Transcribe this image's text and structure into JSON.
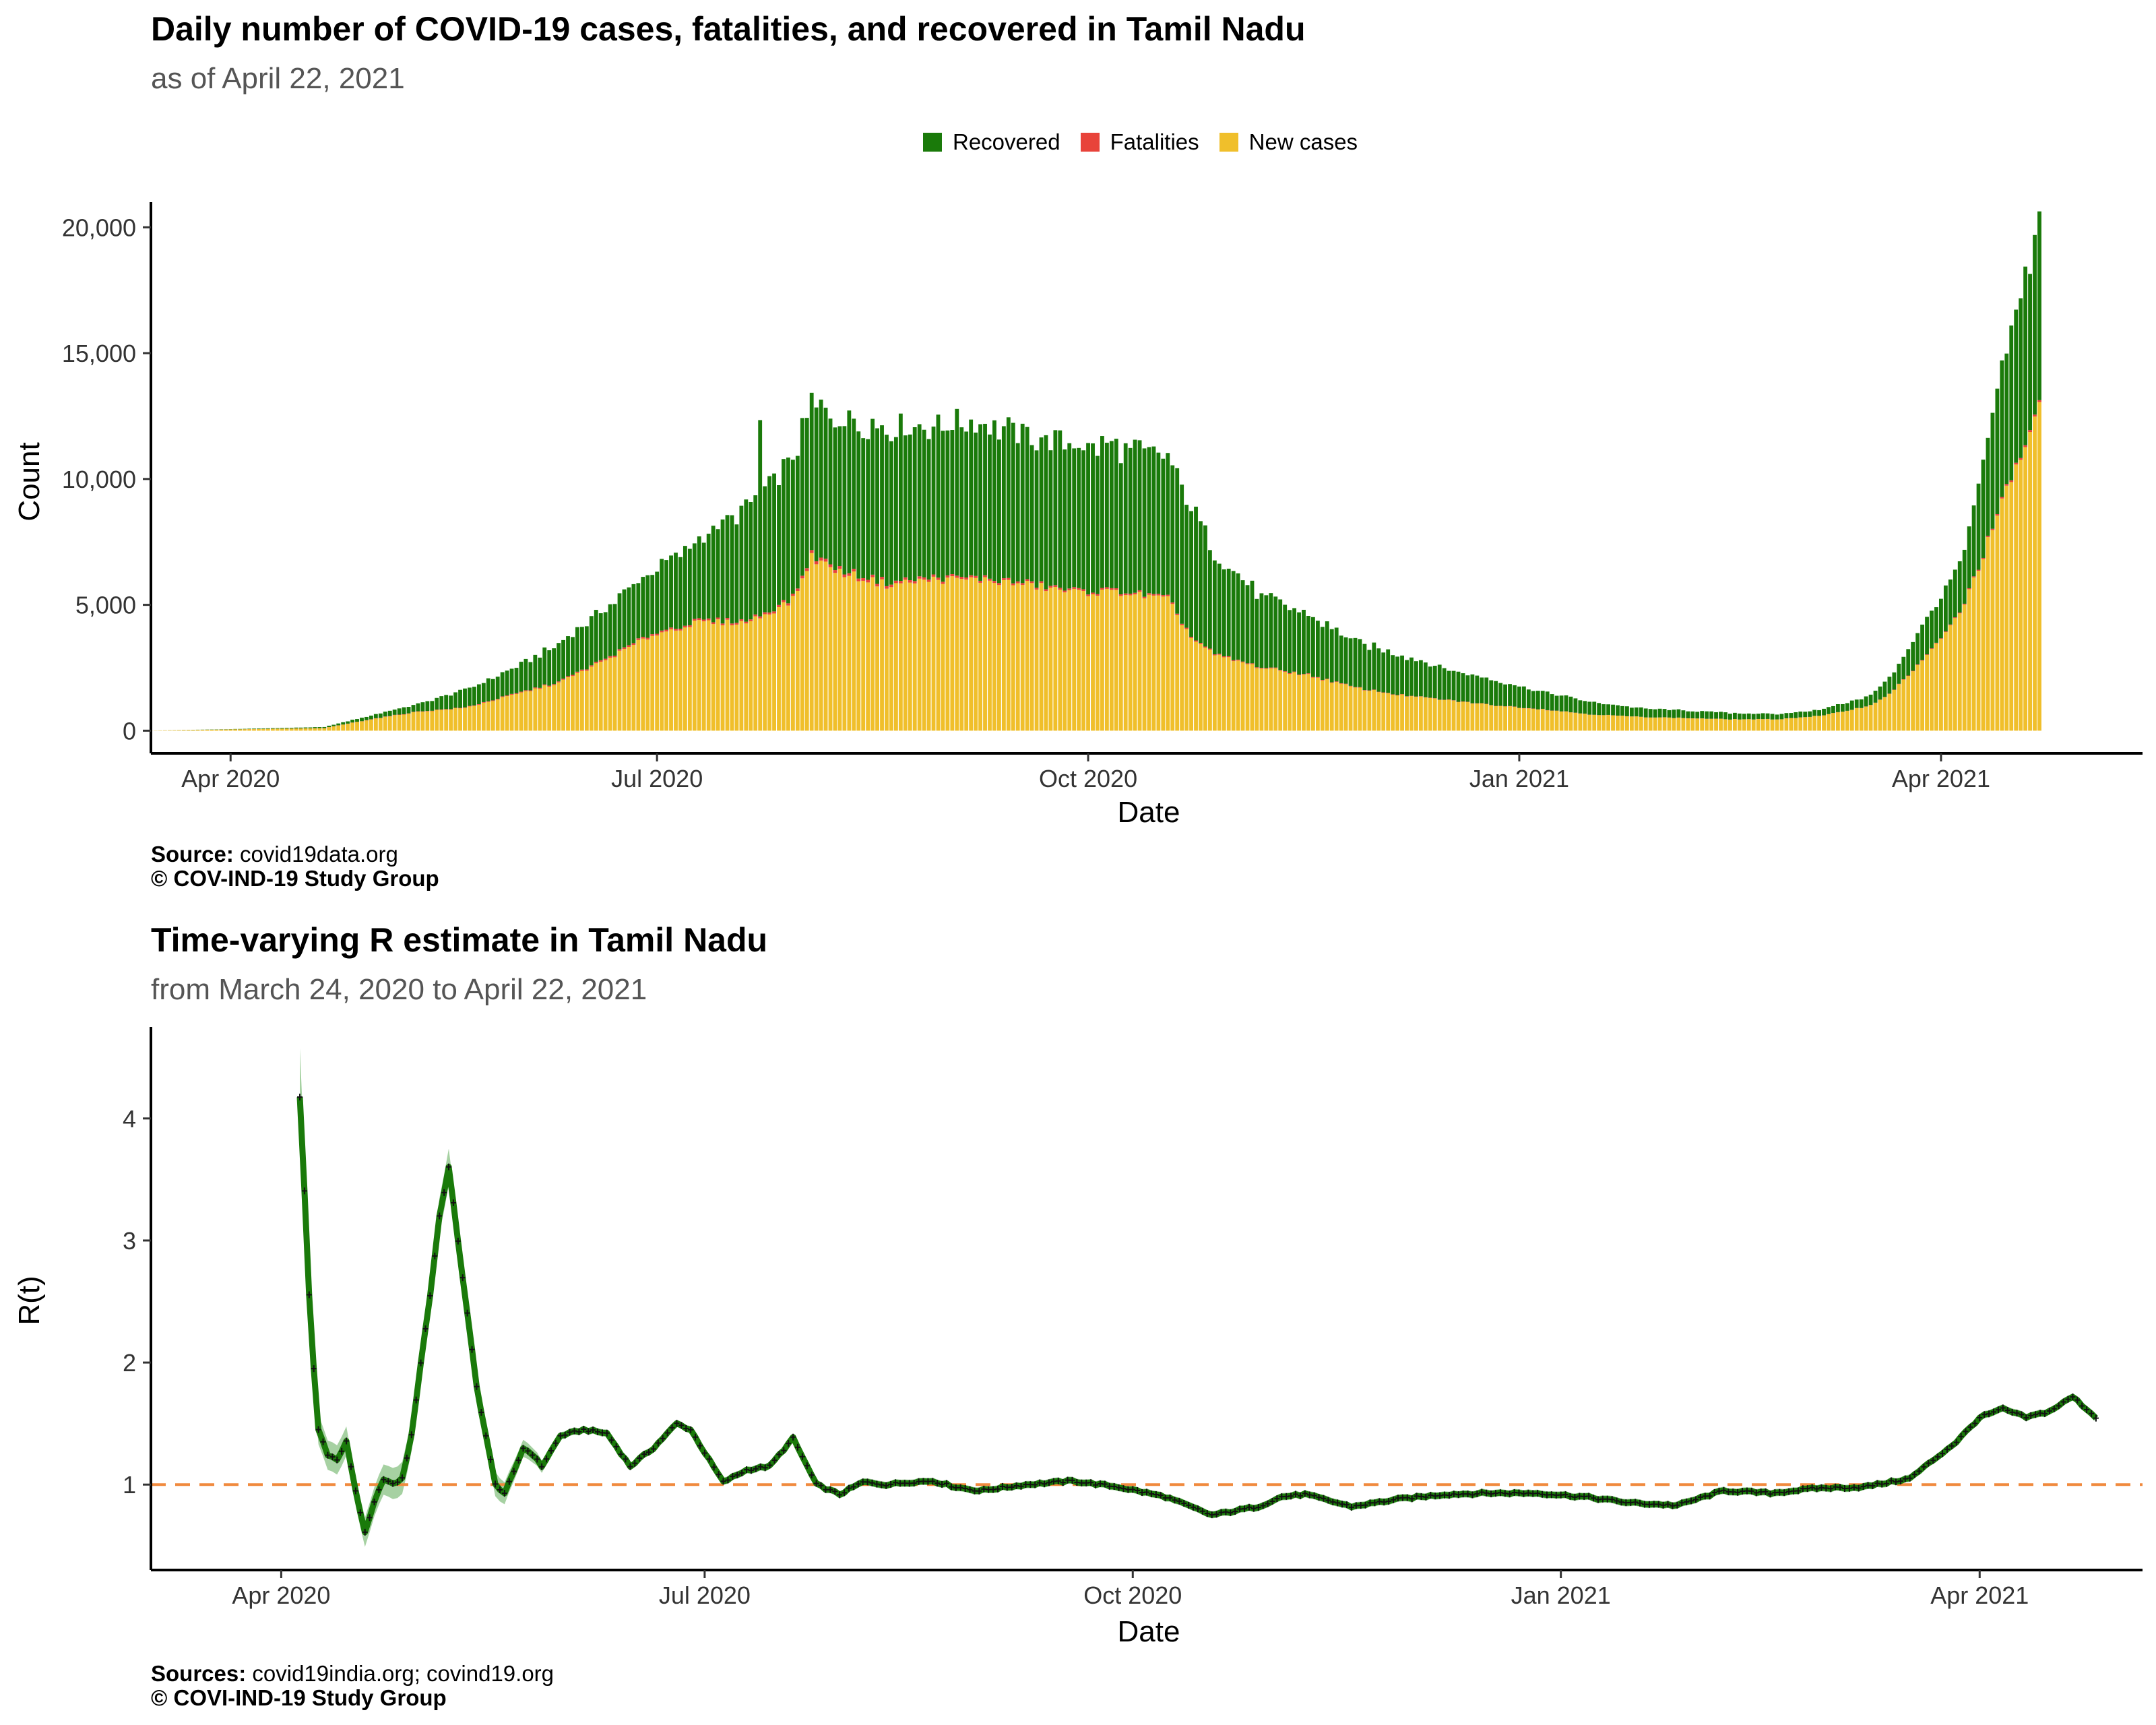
{
  "chart_data": [
    {
      "type": "bar",
      "stacked": true,
      "title": "Daily number of COVID-19 cases, fatalities, and recovered in Tamil Nadu",
      "subtitle": "as of April 22, 2021",
      "xlabel": "Date",
      "ylabel": "Count",
      "ylim": [
        -900,
        21000
      ],
      "yticks": [
        0,
        5000,
        10000,
        15000,
        20000
      ],
      "ytick_labels": [
        "0",
        "5,000",
        "10,000",
        "15,000",
        "20,000"
      ],
      "x_tick_labels": [
        "Apr 2020",
        "Jul 2020",
        "Oct 2020",
        "Jan 2021",
        "Apr 2021"
      ],
      "x_tick_days": [
        0,
        91,
        183,
        275,
        365
      ],
      "xlim_days": [
        -17,
        408
      ],
      "x_start_label": "2020-03-15",
      "x_end_label": "2021-04-22",
      "legend_position": "top",
      "legend": [
        {
          "name": "Recovered",
          "color": "#1a7a0a"
        },
        {
          "name": "Fatalities",
          "color": "#e8433a"
        },
        {
          "name": "New cases",
          "color": "#f0bf2b"
        }
      ],
      "series_keyframes": {
        "day_offset_from_apr_1_2020": [
          -17,
          0,
          20,
          30,
          40,
          50,
          60,
          70,
          80,
          90,
          100,
          110,
          115,
          120,
          124,
          130,
          140,
          150,
          160,
          170,
          180,
          190,
          200,
          205,
          210,
          220,
          230,
          240,
          250,
          260,
          270,
          280,
          290,
          300,
          310,
          320,
          330,
          340,
          350,
          355,
          360,
          365,
          370,
          375,
          380,
          386
        ],
        "new_cases": [
          5,
          50,
          100,
          450,
          750,
          900,
          1400,
          1900,
          2800,
          3800,
          4300,
          4300,
          4700,
          5200,
          6900,
          6300,
          5800,
          6000,
          6000,
          5800,
          5500,
          5500,
          5200,
          3700,
          3000,
          2500,
          2200,
          1700,
          1400,
          1200,
          1000,
          850,
          650,
          550,
          500,
          450,
          450,
          600,
          1000,
          1600,
          2600,
          3600,
          5000,
          7500,
          10000,
          12700
        ],
        "fatalities": [
          0,
          2,
          5,
          10,
          15,
          20,
          30,
          40,
          60,
          70,
          70,
          70,
          80,
          90,
          120,
          110,
          100,
          90,
          80,
          70,
          70,
          65,
          60,
          50,
          40,
          30,
          25,
          18,
          14,
          12,
          10,
          8,
          6,
          5,
          4,
          4,
          4,
          5,
          8,
          12,
          20,
          25,
          35,
          50,
          70,
          80
        ],
        "recovered": [
          0,
          10,
          40,
          150,
          300,
          700,
          1000,
          1500,
          2000,
          2500,
          3200,
          4500,
          5000,
          5500,
          6000,
          6000,
          6200,
          6000,
          6200,
          5800,
          5800,
          5700,
          5500,
          5200,
          4000,
          2800,
          2400,
          1800,
          1600,
          1200,
          1000,
          700,
          500,
          350,
          300,
          250,
          200,
          250,
          400,
          700,
          1300,
          1600,
          2000,
          4000,
          6000,
          7500
        ]
      },
      "notable_peaks": [
        {
          "day": 113,
          "recovered": 7800
        },
        {
          "day": 127,
          "recovered": 6000
        },
        {
          "day": 384,
          "recovered": 6200
        },
        {
          "day": 386,
          "recovered": 7500
        }
      ]
    },
    {
      "type": "line",
      "title": "Time-varying R estimate in Tamil Nadu",
      "subtitle": "from March 24, 2020 to April 22, 2021",
      "xlabel": "Date",
      "ylabel": "R(t)",
      "ylim": [
        0.3,
        4.75
      ],
      "yticks": [
        1,
        2,
        3,
        4
      ],
      "ytick_labels": [
        "1",
        "2",
        "3",
        "4"
      ],
      "x_tick_labels": [
        "Apr 2020",
        "Jul 2020",
        "Oct 2020",
        "Jan 2021",
        "Apr 2021"
      ],
      "x_tick_days": [
        0,
        91,
        183,
        275,
        365
      ],
      "xlim_days": [
        -28,
        400
      ],
      "reference_line": {
        "value": 1,
        "style": "dashed",
        "color": "#f08a3e"
      },
      "line_color": "#1a7a0a",
      "ci_color": "#88c283",
      "series": {
        "day": [
          4,
          5,
          6,
          7,
          8,
          10,
          12,
          14,
          16,
          18,
          20,
          22,
          24,
          26,
          28,
          30,
          32,
          34,
          36,
          38,
          40,
          42,
          44,
          46,
          48,
          50,
          52,
          54,
          56,
          60,
          65,
          70,
          75,
          80,
          85,
          88,
          92,
          95,
          100,
          105,
          110,
          115,
          120,
          125,
          130,
          135,
          140,
          145,
          150,
          160,
          170,
          180,
          190,
          200,
          210,
          215,
          220,
          230,
          240,
          250,
          260,
          270,
          280,
          290,
          300,
          310,
          320,
          330,
          340,
          350,
          360,
          365,
          370,
          375,
          380,
          385,
          390
        ],
        "r": [
          4.18,
          3.4,
          2.55,
          1.95,
          1.45,
          1.25,
          1.2,
          1.35,
          0.95,
          0.6,
          0.85,
          1.05,
          1.0,
          1.05,
          1.4,
          2.0,
          2.55,
          3.2,
          3.6,
          3.0,
          2.4,
          1.8,
          1.4,
          1.0,
          0.93,
          1.1,
          1.3,
          1.25,
          1.15,
          1.4,
          1.45,
          1.42,
          1.15,
          1.3,
          1.5,
          1.45,
          1.2,
          1.02,
          1.12,
          1.15,
          1.38,
          1.0,
          0.92,
          1.02,
          1.0,
          1.02,
          1.03,
          0.98,
          0.95,
          1.0,
          1.03,
          0.98,
          0.9,
          0.75,
          0.82,
          0.9,
          0.92,
          0.82,
          0.88,
          0.92,
          0.93,
          0.93,
          0.9,
          0.85,
          0.83,
          0.95,
          0.93,
          0.97,
          0.98,
          1.05,
          1.35,
          1.55,
          1.62,
          1.55,
          1.6,
          1.72,
          1.55
        ]
      },
      "ci_halfwidth": {
        "day": [
          4,
          8,
          20,
          36,
          60,
          390
        ],
        "halfwidth": [
          0.4,
          0.12,
          0.12,
          0.15,
          0.03,
          0.03
        ]
      }
    }
  ],
  "captions": {
    "chart1_source_label": "Source:",
    "chart1_source_text": "covid19data.org",
    "chart1_copyright": "© COV-IND-19 Study Group",
    "chart2_source_label": "Sources:",
    "chart2_source_text": "covid19india.org; covind19.org",
    "chart2_copyright": "© COVI-IND-19 Study Group"
  },
  "icons": {
    "legend_swatch": "square-swatch-icon"
  }
}
